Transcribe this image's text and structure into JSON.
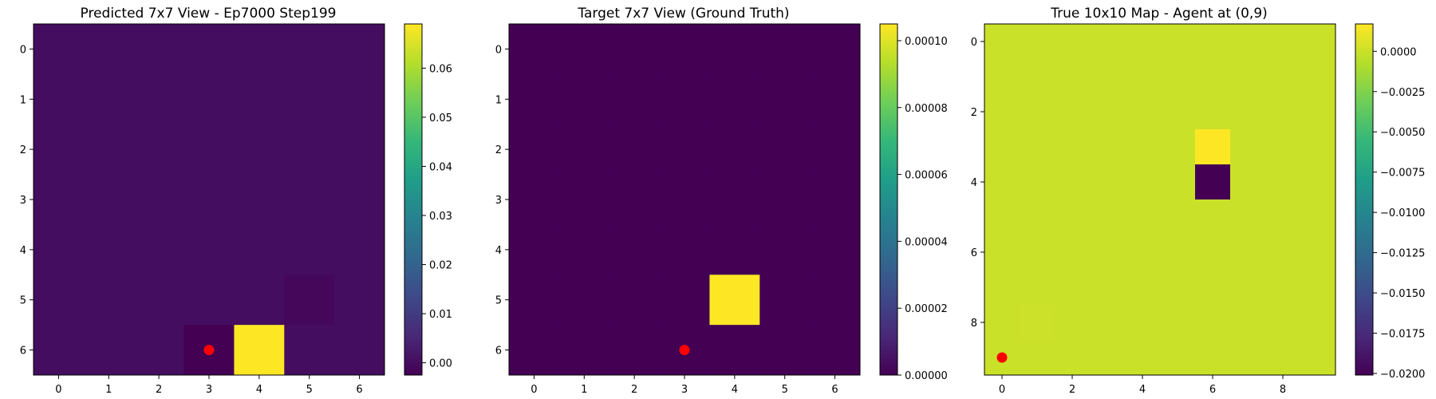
{
  "chart_data": [
    {
      "type": "heatmap",
      "title": "Predicted 7x7 View - Ep7000 Step199",
      "xlabel": "",
      "ylabel": "",
      "colormap": "viridis",
      "rows": 7,
      "cols": 7,
      "x_ticks": [
        0,
        1,
        2,
        3,
        4,
        5,
        6
      ],
      "y_ticks": [
        0,
        1,
        2,
        3,
        4,
        5,
        6
      ],
      "vmin": -0.0025,
      "vmax": 0.069,
      "z": [
        [
          0.0,
          0.0,
          0.0,
          0.0,
          0.0,
          0.0,
          0.0
        ],
        [
          0.0,
          0.0,
          0.0,
          0.0,
          0.0,
          0.0,
          0.0
        ],
        [
          0.0,
          0.0,
          0.0,
          0.0,
          0.0,
          0.0,
          0.0
        ],
        [
          0.0,
          0.0,
          0.0,
          0.0,
          0.0,
          0.0,
          0.0
        ],
        [
          0.0,
          0.0,
          0.0,
          0.0,
          0.0,
          0.0,
          0.0
        ],
        [
          0.0,
          0.0,
          0.0,
          0.0,
          0.0,
          -0.0012,
          0.0
        ],
        [
          0.0,
          0.0,
          0.0,
          -0.0025,
          0.069,
          0.0,
          0.0
        ]
      ],
      "colorbar_ticks": [
        0.0,
        0.01,
        0.02,
        0.03,
        0.04,
        0.05,
        0.06
      ],
      "colorbar_tick_labels": [
        "0.00",
        "0.01",
        "0.02",
        "0.03",
        "0.04",
        "0.05",
        "0.06"
      ],
      "agent_marker": {
        "x": 3,
        "y": 6,
        "color": "#ff0000"
      }
    },
    {
      "type": "heatmap",
      "title": "Target 7x7 View (Ground Truth)",
      "xlabel": "",
      "ylabel": "",
      "colormap": "viridis",
      "rows": 7,
      "cols": 7,
      "x_ticks": [
        0,
        1,
        2,
        3,
        4,
        5,
        6
      ],
      "y_ticks": [
        0,
        1,
        2,
        3,
        4,
        5,
        6
      ],
      "vmin": 0.0,
      "vmax": 0.000105,
      "z": [
        [
          0.0,
          0.0,
          0.0,
          0.0,
          0.0,
          0.0,
          0.0
        ],
        [
          0.0,
          0.0,
          0.0,
          0.0,
          0.0,
          0.0,
          0.0
        ],
        [
          0.0,
          0.0,
          0.0,
          0.0,
          0.0,
          0.0,
          0.0
        ],
        [
          0.0,
          0.0,
          0.0,
          0.0,
          0.0,
          0.0,
          0.0
        ],
        [
          0.0,
          0.0,
          0.0,
          0.0,
          0.0,
          0.0,
          0.0
        ],
        [
          0.0,
          0.0,
          0.0,
          0.0,
          0.000105,
          0.0,
          0.0
        ],
        [
          0.0,
          0.0,
          0.0,
          0.0,
          0.0,
          0.0,
          0.0
        ]
      ],
      "colorbar_ticks": [
        0.0,
        2e-05,
        4e-05,
        6e-05,
        8e-05,
        0.0001
      ],
      "colorbar_tick_labels": [
        "0.00000",
        "0.00002",
        "0.00004",
        "0.00006",
        "0.00008",
        "0.00010"
      ],
      "agent_marker": {
        "x": 3,
        "y": 6,
        "color": "#ff0000"
      }
    },
    {
      "type": "heatmap",
      "title": "True 10x10 Map - Agent at (0,9)",
      "xlabel": "",
      "ylabel": "",
      "colormap": "viridis",
      "rows": 10,
      "cols": 10,
      "x_ticks": [
        0,
        2,
        4,
        6,
        8
      ],
      "y_ticks": [
        0,
        2,
        4,
        6,
        8
      ],
      "vmin": -0.0201,
      "vmax": 0.0017,
      "z": [
        [
          0,
          0,
          0,
          0,
          0,
          0,
          0,
          0,
          0,
          0
        ],
        [
          0,
          0,
          0,
          0,
          0,
          0,
          0,
          0,
          0,
          0
        ],
        [
          0,
          0,
          0,
          0,
          0,
          0,
          0,
          0,
          0,
          0
        ],
        [
          0,
          0,
          0,
          0,
          0,
          0,
          0.0017,
          0,
          0,
          0
        ],
        [
          0,
          0,
          0,
          0,
          0,
          0,
          -0.0201,
          0,
          0,
          0
        ],
        [
          0,
          0,
          0,
          0,
          0,
          0,
          0,
          0,
          0,
          0
        ],
        [
          0,
          0,
          0,
          0,
          0,
          0,
          0,
          0,
          0,
          0
        ],
        [
          0,
          0,
          0,
          0,
          0,
          0,
          0,
          0,
          0,
          0
        ],
        [
          0,
          5e-05,
          0,
          0,
          0,
          0,
          0,
          0,
          0,
          0
        ],
        [
          0,
          0,
          0,
          0,
          0,
          0,
          0,
          0,
          0,
          0
        ]
      ],
      "colorbar_ticks": [
        0.0,
        -0.0025,
        -0.005,
        -0.0075,
        -0.01,
        -0.0125,
        -0.015,
        -0.0175,
        -0.02
      ],
      "colorbar_tick_labels": [
        "0.0000",
        "−0.0025",
        "−0.0050",
        "−0.0075",
        "−0.0100",
        "−0.0125",
        "−0.0150",
        "−0.0175",
        "−0.0200"
      ],
      "agent_marker": {
        "x": 0,
        "y": 9,
        "color": "#ff0000"
      }
    }
  ]
}
